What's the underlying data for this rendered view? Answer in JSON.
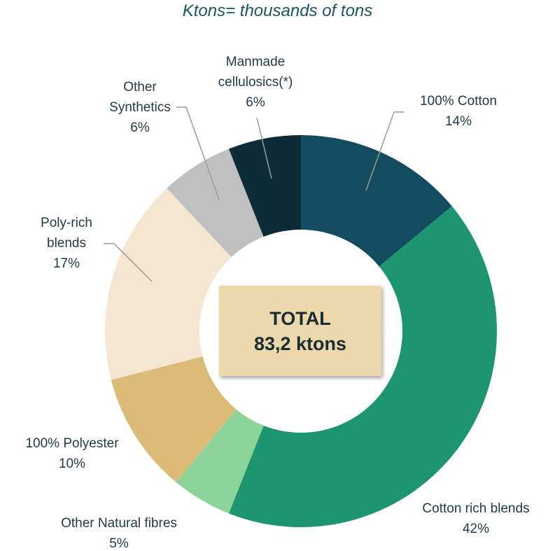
{
  "chart_data": {
    "type": "pie",
    "donut": true,
    "title": "Ktons= thousands of tons",
    "center_text": [
      "TOTAL",
      "83,2 ktons"
    ],
    "categories": [
      "100% Cotton",
      "Cotton rich blends",
      "Other Natural fibres",
      "100% Polyester",
      "Poly-rich blends",
      "Other Synthetics",
      "Manmade cellulosics(*)"
    ],
    "values": [
      14,
      42,
      5,
      10,
      17,
      6,
      6
    ],
    "value_labels": [
      "14%",
      "42%",
      "5%",
      "10%",
      "17%",
      "6%",
      "6%"
    ],
    "colors": [
      "#134b5f",
      "#1d9670",
      "#8dd49a",
      "#dcbb78",
      "#f4e6d0",
      "#c0c0c0",
      "#0d2c38"
    ]
  }
}
